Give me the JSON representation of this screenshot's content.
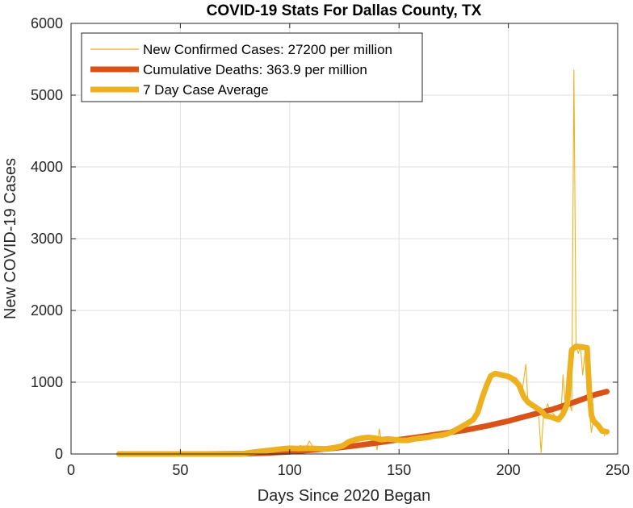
{
  "chart_data": {
    "type": "line",
    "title": "COVID-19 Stats For Dallas County, TX",
    "xlabel": "Days Since 2020 Began",
    "ylabel": "New COVID-19 Cases",
    "xlim": [
      0,
      250
    ],
    "ylim": [
      0,
      6000
    ],
    "xticks": [
      0,
      50,
      100,
      150,
      200,
      250
    ],
    "yticks": [
      0,
      1000,
      2000,
      3000,
      4000,
      5000,
      6000
    ],
    "grid": true,
    "legend_position": "top-left",
    "series": [
      {
        "name": "New Confirmed Cases: 27200 per million",
        "color": "#EDB120",
        "style": "thin",
        "points": [
          [
            22,
            0
          ],
          [
            40,
            0
          ],
          [
            60,
            0
          ],
          [
            75,
            0
          ],
          [
            80,
            20
          ],
          [
            85,
            50
          ],
          [
            90,
            70
          ],
          [
            95,
            80
          ],
          [
            98,
            60
          ],
          [
            100,
            90
          ],
          [
            102,
            70
          ],
          [
            105,
            120
          ],
          [
            107,
            60
          ],
          [
            109,
            180
          ],
          [
            111,
            80
          ],
          [
            113,
            70
          ],
          [
            116,
            100
          ],
          [
            118,
            90
          ],
          [
            120,
            110
          ],
          [
            123,
            90
          ],
          [
            125,
            160
          ],
          [
            127,
            190
          ],
          [
            129,
            200
          ],
          [
            131,
            240
          ],
          [
            133,
            210
          ],
          [
            135,
            250
          ],
          [
            137,
            240
          ],
          [
            139,
            190
          ],
          [
            140,
            60
          ],
          [
            141,
            350
          ],
          [
            142,
            180
          ],
          [
            144,
            210
          ],
          [
            146,
            200
          ],
          [
            148,
            180
          ],
          [
            150,
            220
          ],
          [
            152,
            170
          ],
          [
            154,
            190
          ],
          [
            156,
            180
          ],
          [
            158,
            190
          ],
          [
            160,
            210
          ],
          [
            162,
            230
          ],
          [
            164,
            200
          ],
          [
            166,
            250
          ],
          [
            168,
            240
          ],
          [
            170,
            260
          ],
          [
            172,
            290
          ],
          [
            174,
            300
          ],
          [
            176,
            320
          ],
          [
            178,
            380
          ],
          [
            180,
            380
          ],
          [
            182,
            450
          ],
          [
            184,
            520
          ],
          [
            186,
            600
          ],
          [
            188,
            800
          ],
          [
            190,
            1000
          ],
          [
            192,
            1100
          ],
          [
            194,
            1150
          ],
          [
            196,
            1100
          ],
          [
            198,
            1080
          ],
          [
            200,
            1050
          ],
          [
            202,
            1000
          ],
          [
            204,
            950
          ],
          [
            206,
            800
          ],
          [
            208,
            1250
          ],
          [
            209,
            700
          ],
          [
            210,
            740
          ],
          [
            211,
            650
          ],
          [
            212,
            700
          ],
          [
            213,
            600
          ],
          [
            214,
            500
          ],
          [
            215,
            20
          ],
          [
            216,
            500
          ],
          [
            218,
            700
          ],
          [
            219,
            600
          ],
          [
            221,
            550
          ],
          [
            222,
            450
          ],
          [
            224,
            500
          ],
          [
            225,
            1100
          ],
          [
            226,
            700
          ],
          [
            227,
            800
          ],
          [
            228,
            700
          ],
          [
            229,
            600
          ],
          [
            230,
            5350
          ],
          [
            231,
            1500
          ],
          [
            232,
            1400
          ],
          [
            233,
            1500
          ],
          [
            234,
            1100
          ],
          [
            235,
            1400
          ],
          [
            236,
            1500
          ],
          [
            237,
            600
          ],
          [
            238,
            300
          ],
          [
            239,
            500
          ],
          [
            240,
            400
          ],
          [
            241,
            350
          ],
          [
            242,
            300
          ],
          [
            243,
            380
          ],
          [
            244,
            250
          ]
        ]
      },
      {
        "name": "Cumulative Deaths: 363.9 per million",
        "color": "#D95319",
        "style": "thick",
        "points": [
          [
            22,
            0
          ],
          [
            60,
            0
          ],
          [
            80,
            5
          ],
          [
            90,
            15
          ],
          [
            100,
            30
          ],
          [
            110,
            55
          ],
          [
            120,
            80
          ],
          [
            130,
            115
          ],
          [
            140,
            155
          ],
          [
            150,
            200
          ],
          [
            160,
            240
          ],
          [
            170,
            285
          ],
          [
            180,
            330
          ],
          [
            190,
            390
          ],
          [
            200,
            460
          ],
          [
            210,
            540
          ],
          [
            220,
            620
          ],
          [
            230,
            720
          ],
          [
            240,
            830
          ],
          [
            245,
            870
          ]
        ]
      },
      {
        "name": "7 Day Case Average",
        "color": "#EDB120",
        "style": "thick",
        "points": [
          [
            22,
            0
          ],
          [
            60,
            0
          ],
          [
            78,
            0
          ],
          [
            82,
            20
          ],
          [
            88,
            40
          ],
          [
            92,
            55
          ],
          [
            96,
            70
          ],
          [
            100,
            80
          ],
          [
            104,
            75
          ],
          [
            108,
            80
          ],
          [
            112,
            75
          ],
          [
            116,
            70
          ],
          [
            120,
            85
          ],
          [
            124,
            110
          ],
          [
            127,
            170
          ],
          [
            130,
            200
          ],
          [
            133,
            220
          ],
          [
            136,
            230
          ],
          [
            139,
            220
          ],
          [
            142,
            200
          ],
          [
            145,
            210
          ],
          [
            148,
            200
          ],
          [
            151,
            190
          ],
          [
            154,
            190
          ],
          [
            157,
            210
          ],
          [
            160,
            220
          ],
          [
            163,
            230
          ],
          [
            166,
            250
          ],
          [
            169,
            260
          ],
          [
            172,
            280
          ],
          [
            175,
            320
          ],
          [
            178,
            370
          ],
          [
            181,
            420
          ],
          [
            184,
            480
          ],
          [
            186,
            580
          ],
          [
            188,
            780
          ],
          [
            190,
            950
          ],
          [
            192,
            1090
          ],
          [
            194,
            1120
          ],
          [
            197,
            1100
          ],
          [
            200,
            1080
          ],
          [
            203,
            1030
          ],
          [
            205,
            950
          ],
          [
            207,
            800
          ],
          [
            209,
            720
          ],
          [
            211,
            680
          ],
          [
            213,
            640
          ],
          [
            215,
            600
          ],
          [
            217,
            530
          ],
          [
            219,
            520
          ],
          [
            221,
            500
          ],
          [
            223,
            480
          ],
          [
            225,
            560
          ],
          [
            227,
            700
          ],
          [
            228,
            1100
          ],
          [
            229,
            1450
          ],
          [
            231,
            1500
          ],
          [
            234,
            1490
          ],
          [
            236,
            1480
          ],
          [
            237,
            900
          ],
          [
            238,
            540
          ],
          [
            239,
            460
          ],
          [
            241,
            400
          ],
          [
            243,
            320
          ],
          [
            245,
            310
          ]
        ]
      }
    ]
  }
}
